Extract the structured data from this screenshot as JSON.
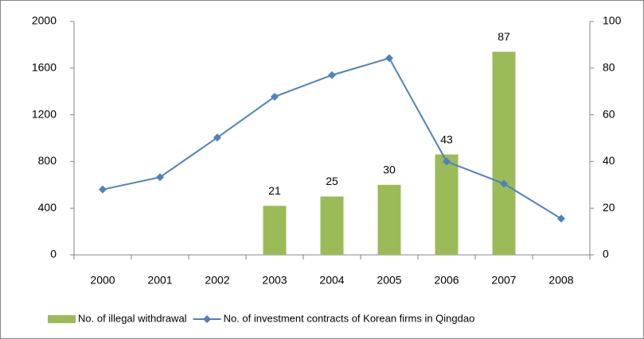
{
  "chart_data": {
    "type": "bar-line",
    "categories": [
      "2000",
      "2001",
      "2002",
      "2003",
      "2004",
      "2005",
      "2006",
      "2007",
      "2008"
    ],
    "series": [
      {
        "name": "No. of illegal withdrawal",
        "type": "bar",
        "color": "#9bbb59",
        "axis": "y2",
        "values": [
          null,
          null,
          null,
          21,
          25,
          30,
          43,
          87,
          null
        ]
      },
      {
        "name": "No. of investment contracts of Korean firms in Qingdao",
        "type": "line",
        "color": "#4f81bd",
        "values": [
          560,
          665,
          1005,
          1355,
          1540,
          1685,
          800,
          610,
          310
        ]
      }
    ],
    "ylim": [
      0,
      2000
    ],
    "yticks": [
      0,
      400,
      800,
      1200,
      1600,
      2000
    ],
    "y2lim": [
      0,
      100
    ],
    "y2ticks": [
      0,
      20,
      40,
      60,
      80,
      100
    ],
    "grid": false,
    "legend": "bottom"
  }
}
